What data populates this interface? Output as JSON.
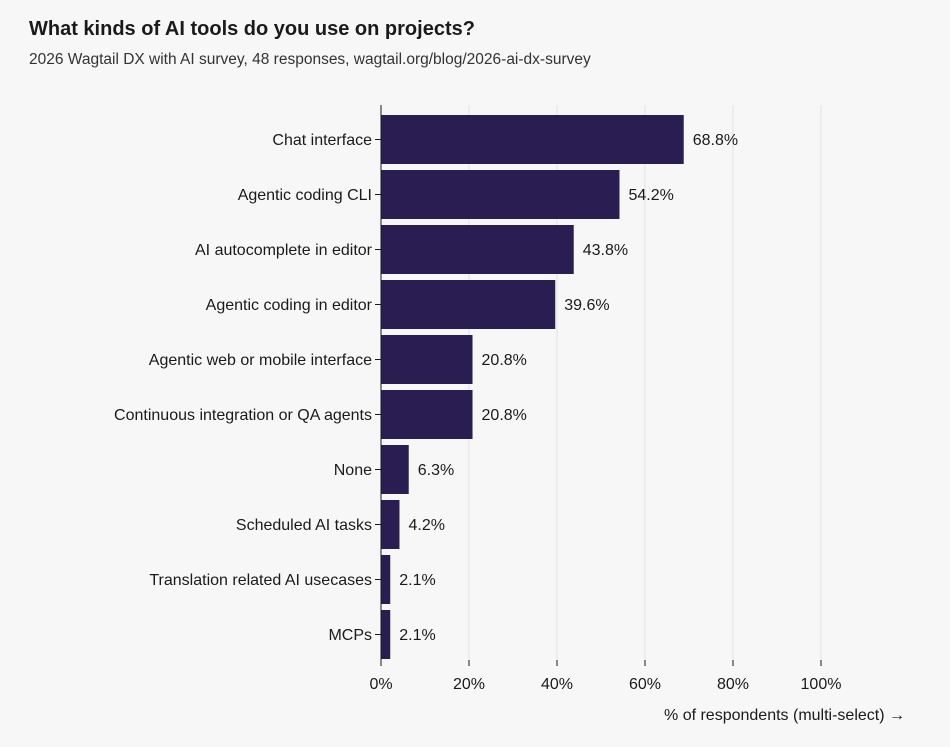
{
  "title": "What kinds of AI tools do you use on projects?",
  "subtitle": "2026 Wagtail DX with AI survey, 48 responses, wagtail.org/blog/2026-ai-dx-survey",
  "colors": {
    "bar": "#2a1d52",
    "grid": "#e2e2e2",
    "axis": "#1a1a1a",
    "background": "#f7f7f7"
  },
  "chart_data": {
    "type": "bar",
    "orientation": "horizontal",
    "categories": [
      "Chat interface",
      "Agentic coding CLI",
      "AI autocomplete in editor",
      "Agentic coding in editor",
      "Agentic web or mobile interface",
      "Continuous integration or QA agents",
      "None",
      "Scheduled AI tasks",
      "Translation related AI usecases",
      "MCPs"
    ],
    "values": [
      68.8,
      54.2,
      43.8,
      39.6,
      20.8,
      20.8,
      6.3,
      4.2,
      2.1,
      2.1
    ],
    "value_labels": [
      "68.8%",
      "54.2%",
      "43.8%",
      "39.6%",
      "20.8%",
      "20.8%",
      "6.3%",
      "4.2%",
      "2.1%",
      "2.1%"
    ],
    "xlim": [
      0,
      100
    ],
    "xticks": [
      0,
      20,
      40,
      60,
      80,
      100
    ],
    "xtick_labels": [
      "0%",
      "20%",
      "40%",
      "60%",
      "80%",
      "100%"
    ],
    "xlabel": "% of respondents (multi-select) →",
    "grid": "vertical"
  }
}
